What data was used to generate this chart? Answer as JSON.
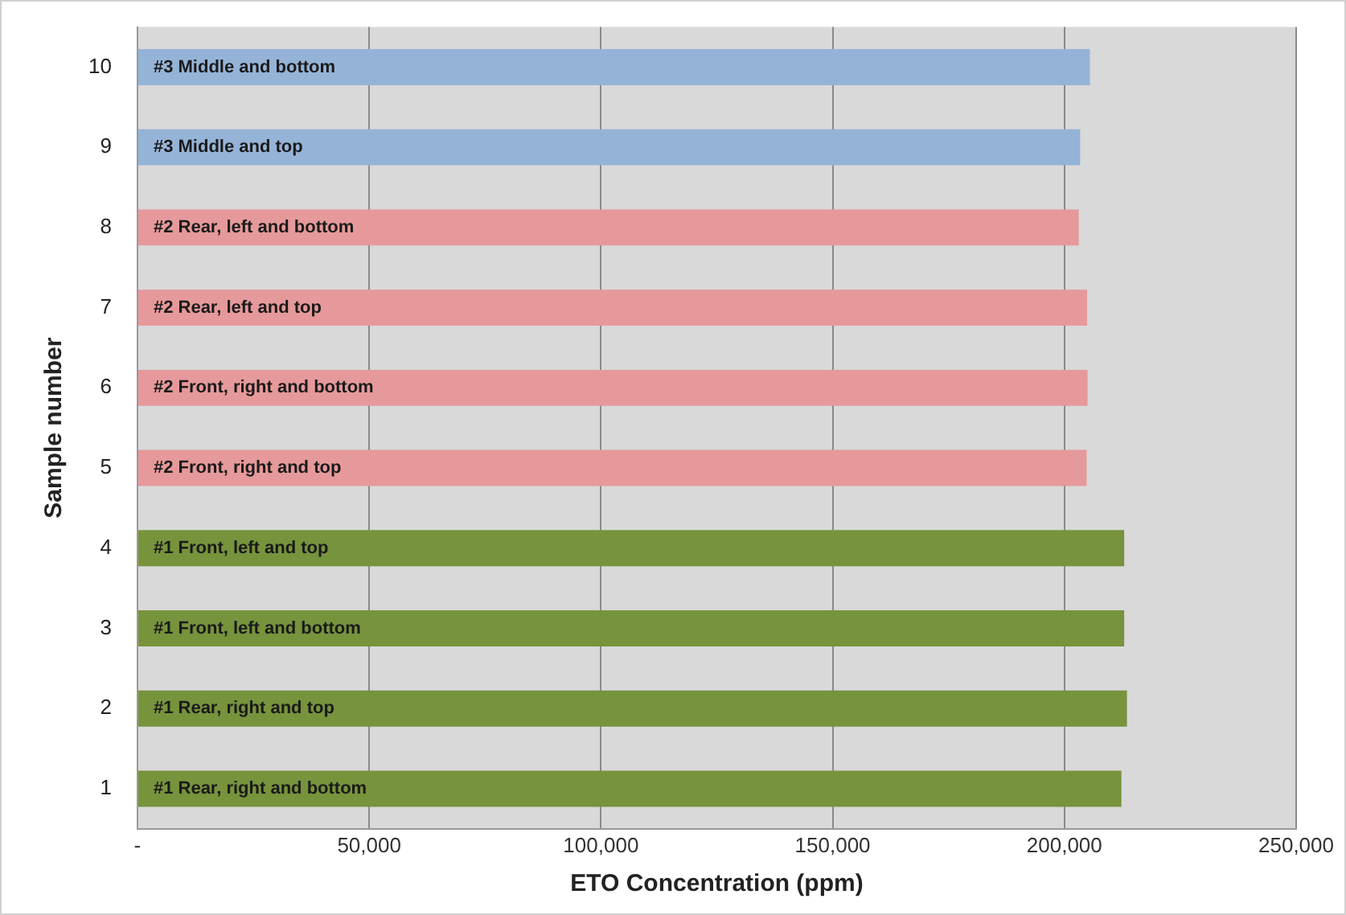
{
  "chart_data": {
    "type": "bar",
    "orientation": "horizontal",
    "xlabel": "ETO Concentration (ppm)",
    "ylabel": "Sample number",
    "categories": [
      "10",
      "9",
      "8",
      "7",
      "6",
      "5",
      "4",
      "3",
      "2",
      "1"
    ],
    "values": [
      205500,
      203400,
      203100,
      204900,
      205000,
      204800,
      212900,
      212900,
      213500,
      212300
    ],
    "annotations": [
      "#3 Middle and bottom",
      "#3 Middle and top",
      "#2 Rear, left and bottom",
      "#2 Rear, left and top",
      "#2 Front, right and bottom",
      "#2 Front, right and top",
      "#1 Front, left and top",
      "#1 Front, left and bottom",
      "#1 Rear, right and top",
      "#1 Rear, right and bottom"
    ],
    "colors": [
      "#95b3d7",
      "#95b3d7",
      "#e6999a",
      "#e6999a",
      "#e6999a",
      "#e6999a",
      "#77933c",
      "#77933c",
      "#77933c",
      "#77933c"
    ],
    "xlim": [
      0,
      250000
    ],
    "xticks": [
      {
        "value": 0,
        "label": "-"
      },
      {
        "value": 50000,
        "label": "50,000"
      },
      {
        "value": 100000,
        "label": "100,000"
      },
      {
        "value": 150000,
        "label": "150,000"
      },
      {
        "value": 200000,
        "label": "200,000"
      },
      {
        "value": 250000,
        "label": "250,000"
      }
    ],
    "grid": "x",
    "legend": false
  }
}
